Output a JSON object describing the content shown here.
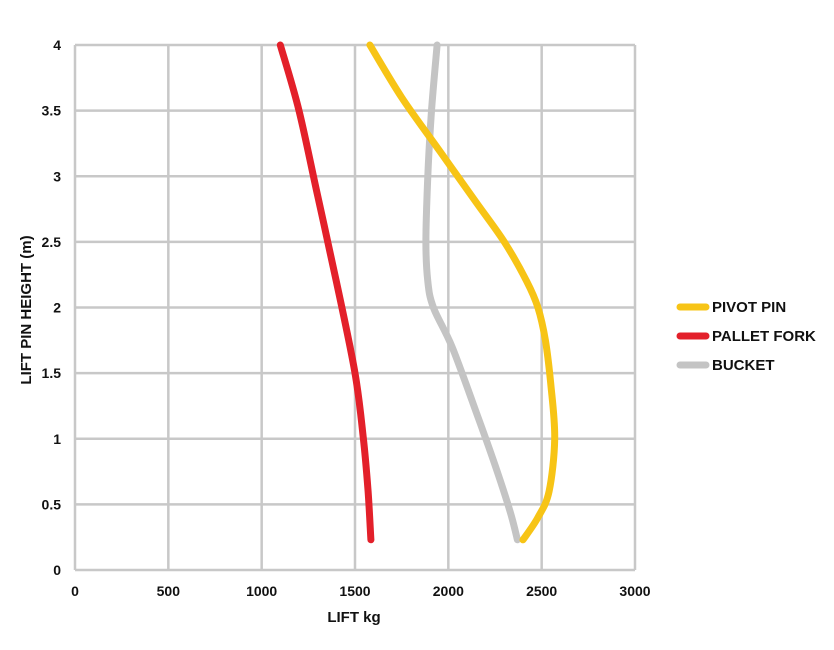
{
  "chart_data": {
    "type": "line",
    "xlabel": "LIFT kg",
    "ylabel": "LIFT PIN HEIGHT (m)",
    "xlim": [
      0,
      3000
    ],
    "ylim": [
      0,
      4
    ],
    "x_ticks": [
      "0",
      "500",
      "1000",
      "1500",
      "2000",
      "2500",
      "3000"
    ],
    "y_ticks": [
      "0",
      "0.5",
      "1",
      "1.5",
      "2",
      "2.5",
      "3",
      "3.5",
      "4"
    ],
    "grid": true,
    "legend_position": "right",
    "series": [
      {
        "name": "PIVOT PIN",
        "color": "#f7c416",
        "points": [
          [
            1580,
            4.0
          ],
          [
            1750,
            3.6
          ],
          [
            1950,
            3.2
          ],
          [
            2150,
            2.8
          ],
          [
            2300,
            2.5
          ],
          [
            2420,
            2.2
          ],
          [
            2480,
            2.0
          ],
          [
            2520,
            1.75
          ],
          [
            2550,
            1.4
          ],
          [
            2570,
            1.0
          ],
          [
            2540,
            0.6
          ],
          [
            2480,
            0.4
          ],
          [
            2400,
            0.23
          ]
        ]
      },
      {
        "name": "PALLET FORK",
        "color": "#e3202a",
        "points": [
          [
            1100,
            4.0
          ],
          [
            1200,
            3.5
          ],
          [
            1300,
            2.85
          ],
          [
            1400,
            2.2
          ],
          [
            1500,
            1.5
          ],
          [
            1545,
            1.0
          ],
          [
            1570,
            0.6
          ],
          [
            1585,
            0.23
          ]
        ]
      },
      {
        "name": "BUCKET",
        "color": "#c4c4c4",
        "points": [
          [
            1940,
            4.0
          ],
          [
            1910,
            3.5
          ],
          [
            1890,
            3.0
          ],
          [
            1880,
            2.5
          ],
          [
            1890,
            2.2
          ],
          [
            1920,
            2.0
          ],
          [
            2020,
            1.7
          ],
          [
            2150,
            1.2
          ],
          [
            2250,
            0.8
          ],
          [
            2330,
            0.45
          ],
          [
            2370,
            0.23
          ]
        ]
      }
    ]
  }
}
